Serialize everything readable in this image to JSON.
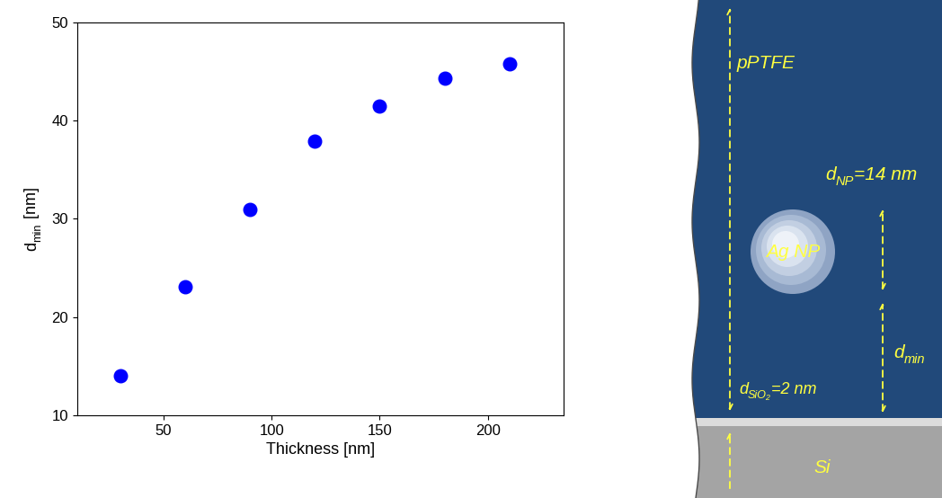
{
  "chart_data": {
    "type": "scatter",
    "x": [
      30,
      60,
      90,
      120,
      150,
      180,
      210
    ],
    "values": [
      14,
      23.1,
      31,
      37.9,
      41.5,
      44.3,
      45.8
    ],
    "color": "#0000ff",
    "marker": "o",
    "x_label": "Thickness [nm]",
    "y_label": {
      "base": "d",
      "subscript": "min",
      "suffix": " [nm]"
    },
    "xlim": [
      10,
      235
    ],
    "xticks": [
      50,
      100,
      150,
      200
    ],
    "ylim": [
      10,
      50
    ],
    "yticks": [
      10,
      20,
      30,
      40,
      50
    ]
  },
  "diagram": {
    "layers": [
      {
        "label": "pPTFE"
      },
      {
        "label": {
          "base": "d",
          "subscript": "SiO₂",
          "suffix": "=2 nm"
        }
      },
      {
        "label": "Si"
      }
    ],
    "particle": {
      "label": "Ag NP",
      "diameter_label": {
        "base": "d",
        "subscript": "NP",
        "suffix": "=14 nm"
      }
    },
    "distance_label": {
      "base": "d",
      "subscript": "min"
    }
  }
}
